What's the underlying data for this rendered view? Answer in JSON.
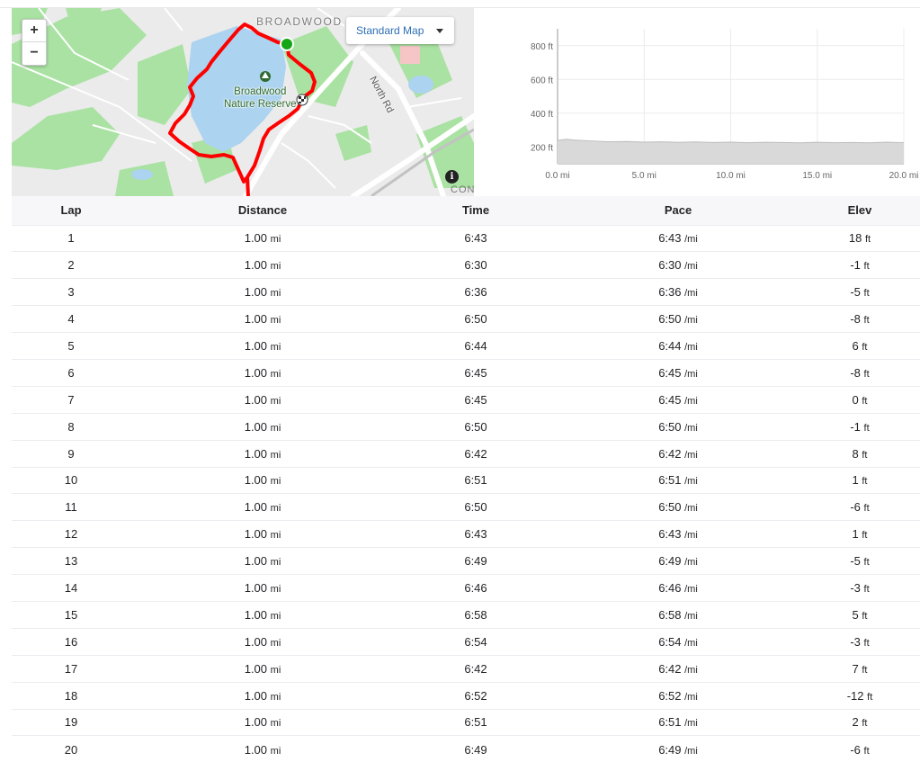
{
  "map": {
    "zoom_in_label": "+",
    "zoom_out_label": "−",
    "map_type_label": "Standard Map",
    "area_label": "BROADWOOD",
    "park_name_line1": "Broadwood",
    "park_name_line2": "Nature Reserve",
    "road_label": "North Rd",
    "edge_label": "CON",
    "info_icon": "i",
    "colors": {
      "route": "#ff0000",
      "start_marker": "#16a516",
      "water": "#aad3f0",
      "park": "#9fe09a"
    }
  },
  "elevation_chart": {
    "chart_data": {
      "type": "area",
      "title": "",
      "xlabel": "",
      "ylabel": "",
      "x_ticks": [
        "0.0 mi",
        "5.0 mi",
        "10.0 mi",
        "15.0 mi",
        "20.0 mi"
      ],
      "y_ticks": [
        "200 ft",
        "400 ft",
        "600 ft",
        "800 ft"
      ],
      "xlim": [
        0,
        20
      ],
      "ylim": [
        100,
        900
      ],
      "grid": true,
      "series": [
        {
          "x": [
            0,
            0.5,
            1,
            2,
            3,
            4,
            5,
            6,
            7,
            8,
            9,
            10,
            11,
            12,
            13,
            14,
            15,
            16,
            17,
            18,
            19,
            20
          ],
          "y": [
            238,
            245,
            240,
            235,
            230,
            232,
            228,
            230,
            227,
            229,
            226,
            228,
            225,
            227,
            226,
            224,
            227,
            225,
            226,
            224,
            228,
            225
          ]
        }
      ],
      "colors": {
        "fill": "#d9d9d9",
        "line": "#bdbdbd"
      }
    }
  },
  "table": {
    "headers": {
      "lap": "Lap",
      "distance": "Distance",
      "time": "Time",
      "pace": "Pace",
      "elev": "Elev"
    },
    "units": {
      "distance": "mi",
      "pace": "/mi",
      "elev": "ft"
    },
    "rows": [
      {
        "lap": "1",
        "distance": "1.00",
        "time": "6:43",
        "pace": "6:43",
        "elev": "18"
      },
      {
        "lap": "2",
        "distance": "1.00",
        "time": "6:30",
        "pace": "6:30",
        "elev": "-1"
      },
      {
        "lap": "3",
        "distance": "1.00",
        "time": "6:36",
        "pace": "6:36",
        "elev": "-5"
      },
      {
        "lap": "4",
        "distance": "1.00",
        "time": "6:50",
        "pace": "6:50",
        "elev": "-8"
      },
      {
        "lap": "5",
        "distance": "1.00",
        "time": "6:44",
        "pace": "6:44",
        "elev": "6"
      },
      {
        "lap": "6",
        "distance": "1.00",
        "time": "6:45",
        "pace": "6:45",
        "elev": "-8"
      },
      {
        "lap": "7",
        "distance": "1.00",
        "time": "6:45",
        "pace": "6:45",
        "elev": "0"
      },
      {
        "lap": "8",
        "distance": "1.00",
        "time": "6:50",
        "pace": "6:50",
        "elev": "-1"
      },
      {
        "lap": "9",
        "distance": "1.00",
        "time": "6:42",
        "pace": "6:42",
        "elev": "8"
      },
      {
        "lap": "10",
        "distance": "1.00",
        "time": "6:51",
        "pace": "6:51",
        "elev": "1"
      },
      {
        "lap": "11",
        "distance": "1.00",
        "time": "6:50",
        "pace": "6:50",
        "elev": "-6"
      },
      {
        "lap": "12",
        "distance": "1.00",
        "time": "6:43",
        "pace": "6:43",
        "elev": "1"
      },
      {
        "lap": "13",
        "distance": "1.00",
        "time": "6:49",
        "pace": "6:49",
        "elev": "-5"
      },
      {
        "lap": "14",
        "distance": "1.00",
        "time": "6:46",
        "pace": "6:46",
        "elev": "-3"
      },
      {
        "lap": "15",
        "distance": "1.00",
        "time": "6:58",
        "pace": "6:58",
        "elev": "5"
      },
      {
        "lap": "16",
        "distance": "1.00",
        "time": "6:54",
        "pace": "6:54",
        "elev": "-3"
      },
      {
        "lap": "17",
        "distance": "1.00",
        "time": "6:42",
        "pace": "6:42",
        "elev": "7"
      },
      {
        "lap": "18",
        "distance": "1.00",
        "time": "6:52",
        "pace": "6:52",
        "elev": "-12"
      },
      {
        "lap": "19",
        "distance": "1.00",
        "time": "6:51",
        "pace": "6:51",
        "elev": "2"
      },
      {
        "lap": "20",
        "distance": "1.00",
        "time": "6:49",
        "pace": "6:49",
        "elev": "-6"
      }
    ]
  }
}
